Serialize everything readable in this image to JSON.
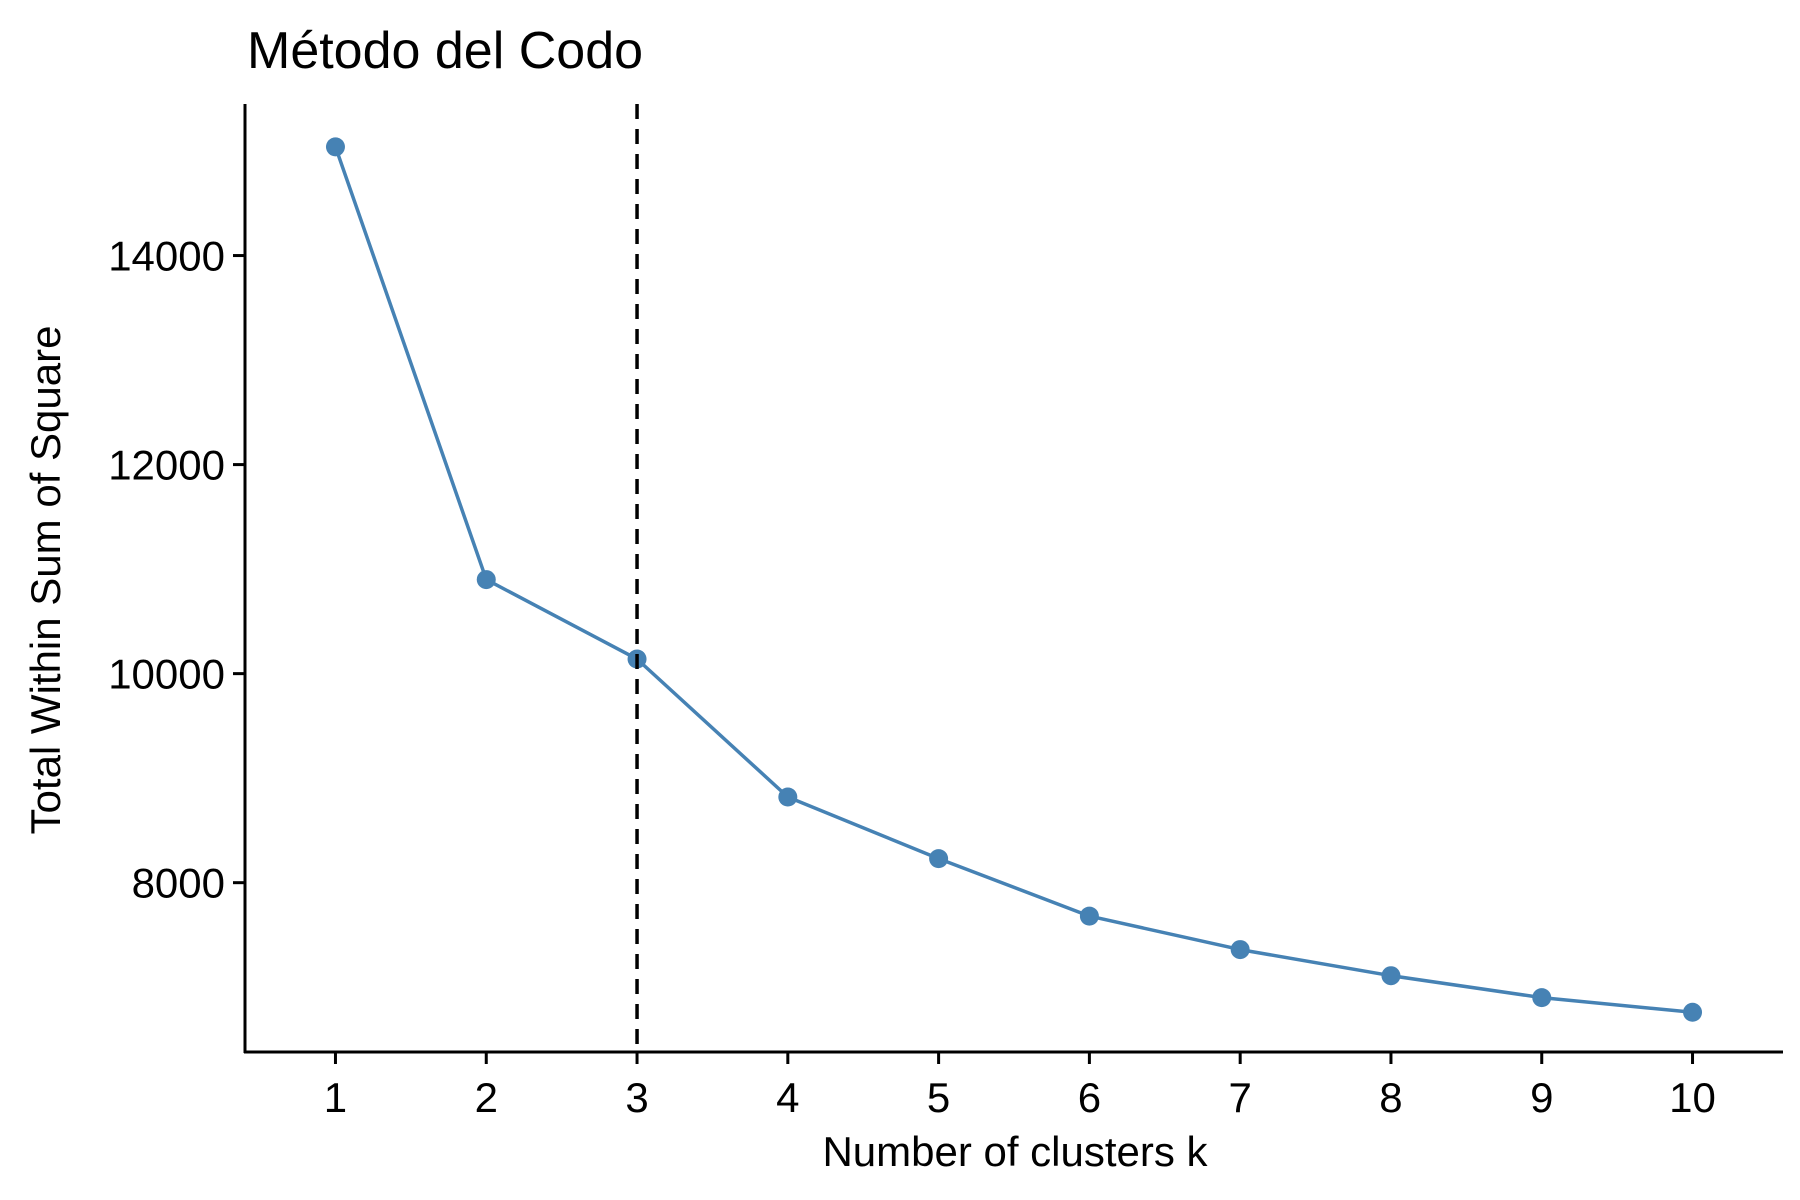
{
  "chart_data": {
    "type": "line",
    "title": "Método del Codo",
    "xlabel": "Number of clusters k",
    "ylabel": "Total Within Sum of Square",
    "x": [
      1,
      2,
      3,
      4,
      5,
      6,
      7,
      8,
      9,
      10
    ],
    "xticks": [
      "1",
      "2",
      "3",
      "4",
      "5",
      "6",
      "7",
      "8",
      "9",
      "10"
    ],
    "yticks": [
      8000,
      10000,
      12000,
      14000
    ],
    "ytick_labels": [
      "8000",
      "10000",
      "12000",
      "14000"
    ],
    "xlim": [
      0.4,
      10.6
    ],
    "ylim": [
      6380,
      15450
    ],
    "series": [
      {
        "values": [
          15040,
          10900,
          10140,
          8820,
          8230,
          7680,
          7360,
          7110,
          6900,
          6760
        ],
        "color": "#4682B4"
      }
    ],
    "reference_line": {
      "axis": "x",
      "value": 3,
      "style": "dashed",
      "color": "#000000"
    },
    "grid": false,
    "legend": "none"
  }
}
